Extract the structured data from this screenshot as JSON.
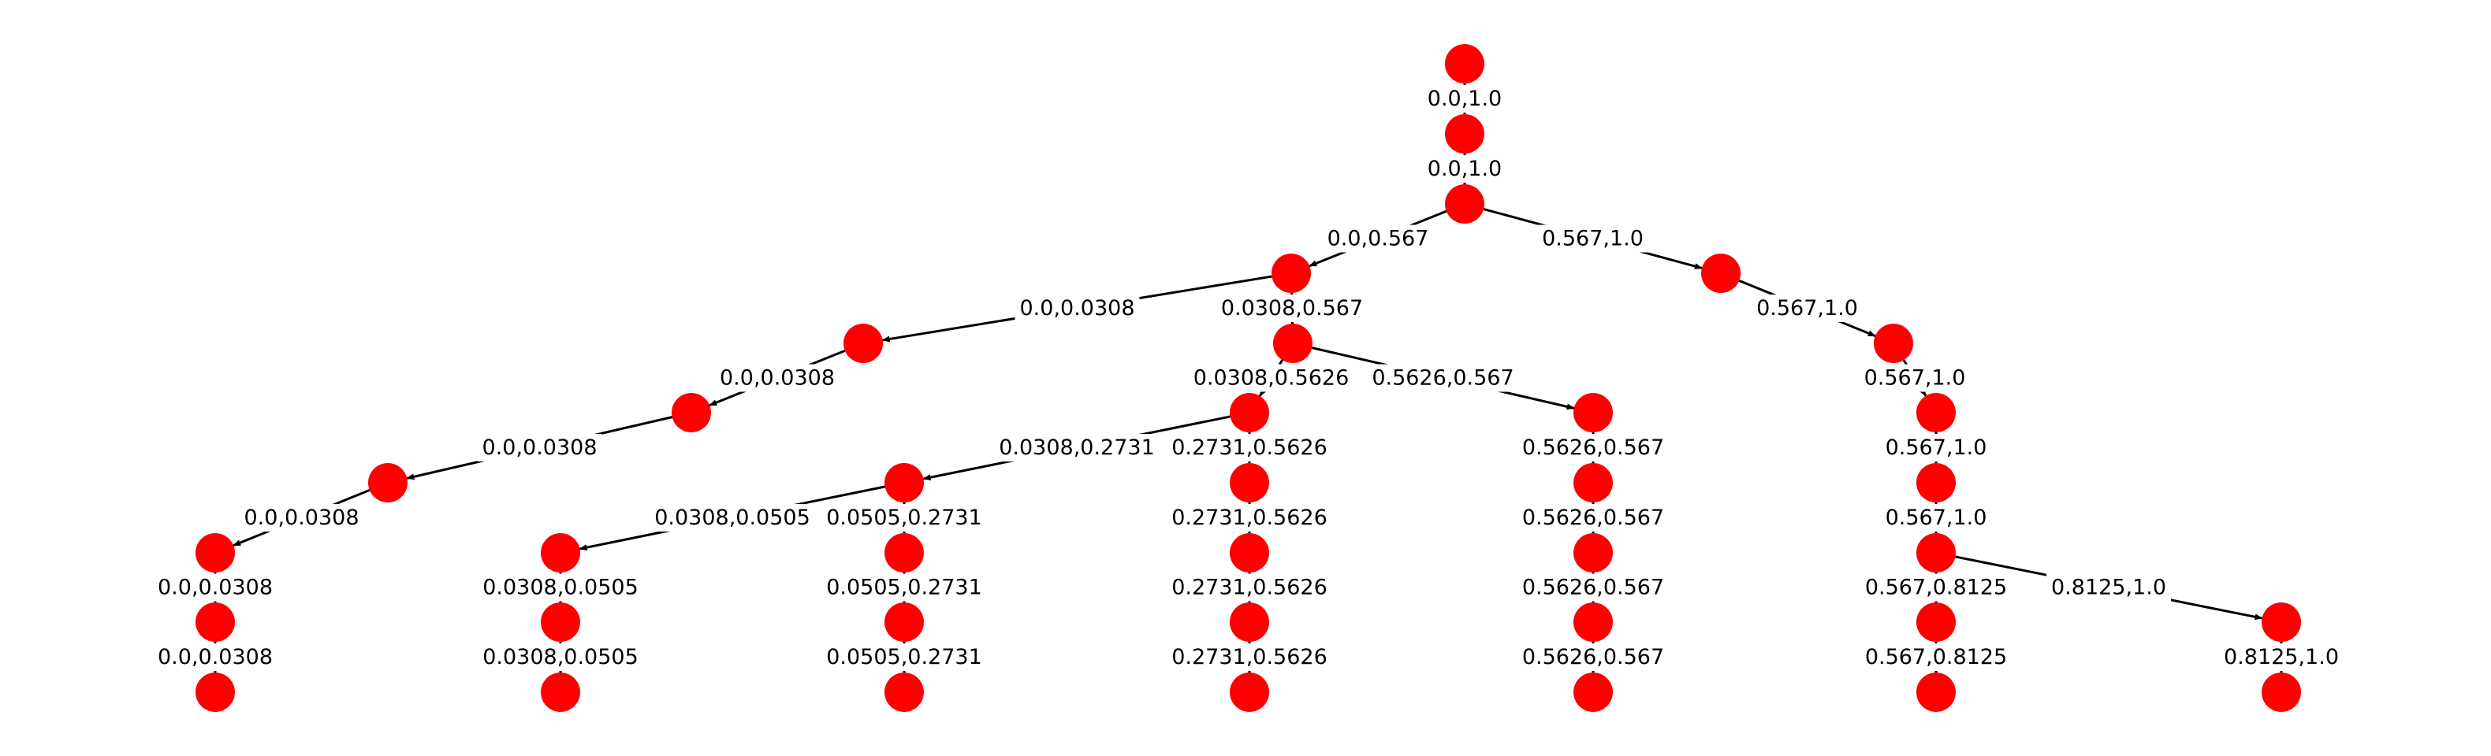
{
  "diagram": {
    "type": "interval-split-tree",
    "colors": {
      "node": "#ff0000",
      "edge": "#000000",
      "label": "#000000",
      "background": "#ffffff"
    },
    "nodes": [
      {
        "id": "n0"
      },
      {
        "id": "n1"
      },
      {
        "id": "n2"
      },
      {
        "id": "n3"
      },
      {
        "id": "n4"
      },
      {
        "id": "n5"
      },
      {
        "id": "n6"
      },
      {
        "id": "n7"
      },
      {
        "id": "n8"
      },
      {
        "id": "n9"
      },
      {
        "id": "n10"
      },
      {
        "id": "n11"
      },
      {
        "id": "n12"
      },
      {
        "id": "n13"
      },
      {
        "id": "n14"
      },
      {
        "id": "n15"
      },
      {
        "id": "n16"
      },
      {
        "id": "n17"
      },
      {
        "id": "n18"
      },
      {
        "id": "n19"
      },
      {
        "id": "n20"
      },
      {
        "id": "n21"
      },
      {
        "id": "n22"
      },
      {
        "id": "n23"
      },
      {
        "id": "n24"
      },
      {
        "id": "n25"
      },
      {
        "id": "n26"
      },
      {
        "id": "n27"
      },
      {
        "id": "n28"
      },
      {
        "id": "n29"
      },
      {
        "id": "n30"
      },
      {
        "id": "n31"
      },
      {
        "id": "n32"
      },
      {
        "id": "n33"
      },
      {
        "id": "n34"
      },
      {
        "id": "n35"
      },
      {
        "id": "n36"
      }
    ],
    "edges": [
      {
        "from": "n0",
        "to": "n1",
        "label": "0.0,1.0"
      },
      {
        "from": "n1",
        "to": "n2",
        "label": "0.0,1.0"
      },
      {
        "from": "n2",
        "to": "n3",
        "label": "0.0,0.567"
      },
      {
        "from": "n2",
        "to": "n4",
        "label": "0.567,1.0"
      },
      {
        "from": "n3",
        "to": "n5",
        "label": "0.0,0.0308"
      },
      {
        "from": "n3",
        "to": "n6",
        "label": "0.0308,0.567"
      },
      {
        "from": "n4",
        "to": "n7",
        "label": "0.567,1.0"
      },
      {
        "from": "n5",
        "to": "n8",
        "label": "0.0,0.0308"
      },
      {
        "from": "n6",
        "to": "n9",
        "label": "0.0308,0.5626"
      },
      {
        "from": "n6",
        "to": "n10",
        "label": "0.5626,0.567"
      },
      {
        "from": "n7",
        "to": "n11",
        "label": "0.567,1.0"
      },
      {
        "from": "n8",
        "to": "n12",
        "label": "0.0,0.0308"
      },
      {
        "from": "n9",
        "to": "n13",
        "label": "0.0308,0.2731"
      },
      {
        "from": "n9",
        "to": "n14",
        "label": "0.2731,0.5626"
      },
      {
        "from": "n10",
        "to": "n15",
        "label": "0.5626,0.567"
      },
      {
        "from": "n11",
        "to": "n16",
        "label": "0.567,1.0"
      },
      {
        "from": "n12",
        "to": "n17",
        "label": "0.0,0.0308"
      },
      {
        "from": "n13",
        "to": "n18",
        "label": "0.0308,0.0505"
      },
      {
        "from": "n13",
        "to": "n19",
        "label": "0.0505,0.2731"
      },
      {
        "from": "n14",
        "to": "n20",
        "label": "0.2731,0.5626"
      },
      {
        "from": "n15",
        "to": "n21",
        "label": "0.5626,0.567"
      },
      {
        "from": "n16",
        "to": "n22",
        "label": "0.567,1.0"
      },
      {
        "from": "n17",
        "to": "n23",
        "label": "0.0,0.0308"
      },
      {
        "from": "n18",
        "to": "n24",
        "label": "0.0308,0.0505"
      },
      {
        "from": "n19",
        "to": "n25",
        "label": "0.0505,0.2731"
      },
      {
        "from": "n20",
        "to": "n26",
        "label": "0.2731,0.5626"
      },
      {
        "from": "n21",
        "to": "n27",
        "label": "0.5626,0.567"
      },
      {
        "from": "n22",
        "to": "n28",
        "label": "0.567,0.8125"
      },
      {
        "from": "n22",
        "to": "n29",
        "label": "0.8125,1.0"
      },
      {
        "from": "n23",
        "to": "n30",
        "label": "0.0,0.0308"
      },
      {
        "from": "n24",
        "to": "n31",
        "label": "0.0308,0.0505"
      },
      {
        "from": "n25",
        "to": "n32",
        "label": "0.0505,0.2731"
      },
      {
        "from": "n26",
        "to": "n33",
        "label": "0.2731,0.5626"
      },
      {
        "from": "n27",
        "to": "n34",
        "label": "0.5626,0.567"
      },
      {
        "from": "n28",
        "to": "n35",
        "label": "0.567,0.8125"
      },
      {
        "from": "n29",
        "to": "n36",
        "label": "0.8125,1.0"
      }
    ]
  }
}
